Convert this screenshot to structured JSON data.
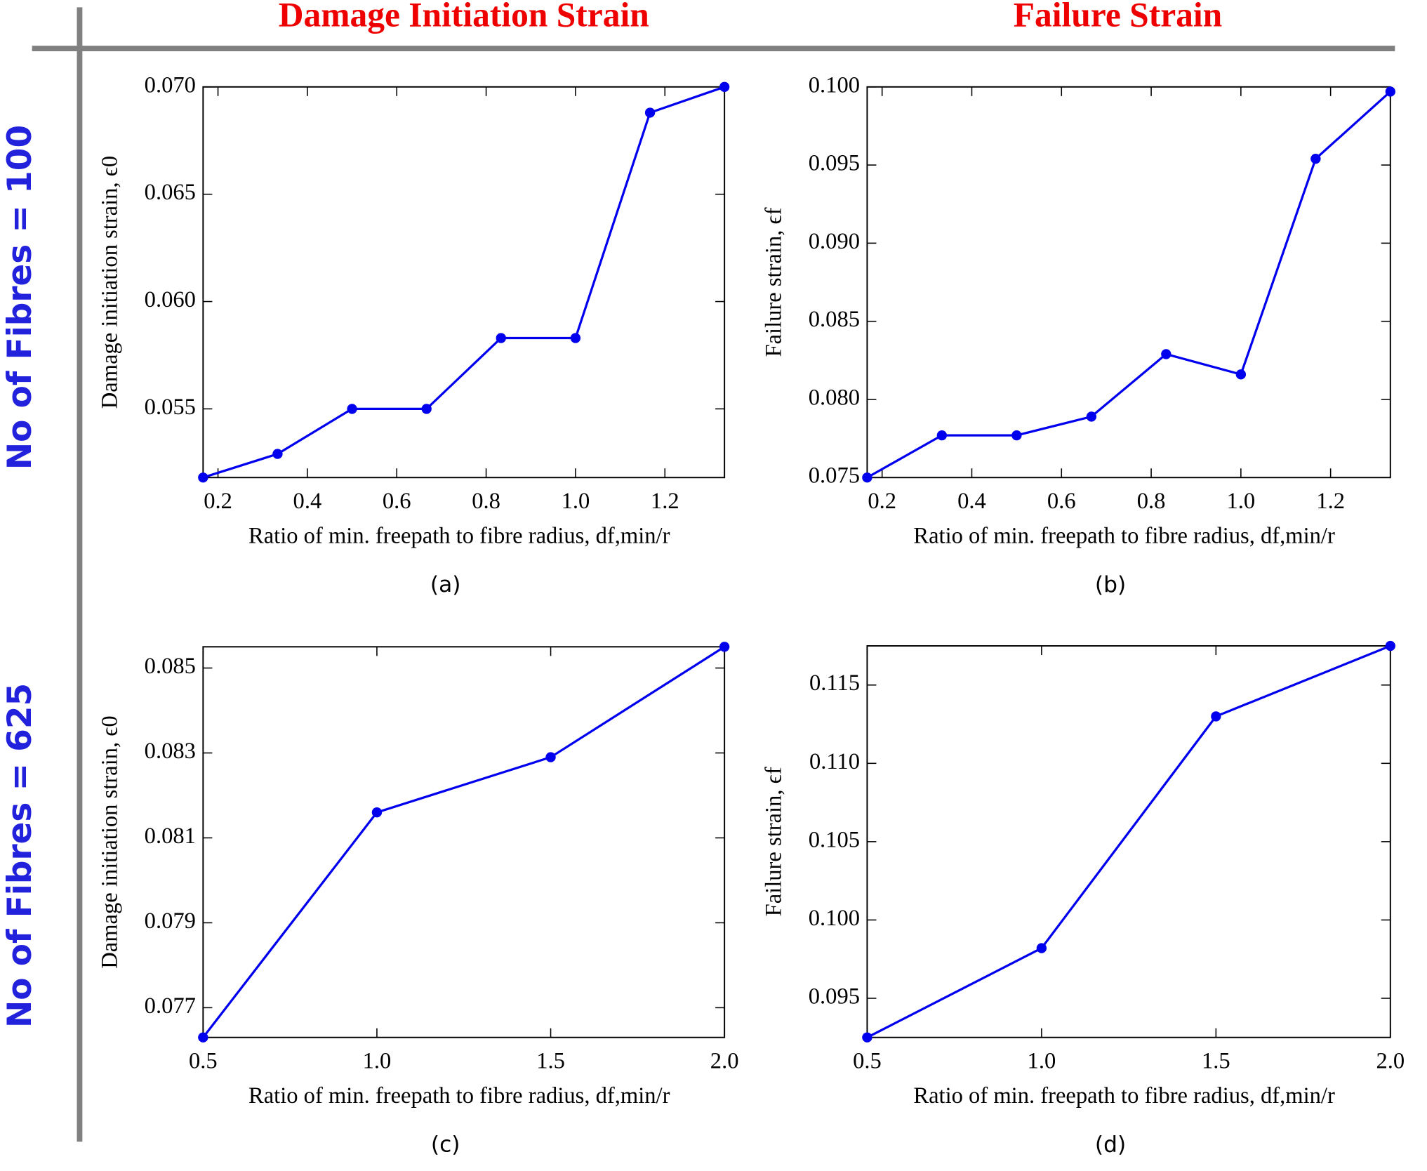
{
  "headers": {
    "columns": [
      "Damage Initiation Strain",
      "Failure Strain"
    ],
    "rows": [
      "No of Fibres = 100",
      "No of Fibres = 625"
    ]
  },
  "chart_data": [
    {
      "type": "line",
      "caption": "(a)",
      "x_label": "Ratio of min. freepath to fibre radius, df,min/r",
      "y_label": "Damage initiation strain, ϵ0",
      "x": [
        0.1667,
        0.3333,
        0.5,
        0.6667,
        0.8333,
        1.0,
        1.1667,
        1.3333
      ],
      "series": [
        {
          "color": "#0000ee",
          "values": [
            0.0518,
            0.0529,
            0.055,
            0.055,
            0.0583,
            0.0583,
            0.0688,
            0.07
          ]
        }
      ],
      "xlim": [
        0.1667,
        1.3333
      ],
      "xticks": [
        0.2,
        0.4,
        0.6,
        0.8,
        {
          "value": 1,
          "label": "1.0"
        },
        1.2
      ],
      "ylim": [
        0.0518,
        0.07
      ],
      "yticks": [
        {
          "value": 0.055,
          "label": "0.055"
        },
        {
          "value": 0.06,
          "label": "0.060"
        },
        {
          "value": 0.065,
          "label": "0.065"
        },
        {
          "value": 0.07,
          "label": "0.070"
        }
      ]
    },
    {
      "type": "line",
      "caption": "(b)",
      "x_label": "Ratio of min. freepath to fibre radius, df,min/r",
      "y_label": "Failure strain, ϵf",
      "x": [
        0.1667,
        0.3333,
        0.5,
        0.6667,
        0.8333,
        1.0,
        1.1667,
        1.3333
      ],
      "series": [
        {
          "color": "#0000ee",
          "values": [
            0.075,
            0.0777,
            0.0777,
            0.0789,
            0.0829,
            0.0816,
            0.0954,
            0.0997
          ]
        }
      ],
      "xlim": [
        0.1667,
        1.3333
      ],
      "xticks": [
        0.2,
        0.4,
        0.6,
        0.8,
        {
          "value": 1,
          "label": "1.0"
        },
        1.2
      ],
      "ylim": [
        0.075,
        0.1
      ],
      "yticks": [
        {
          "value": 0.075,
          "label": "0.075"
        },
        {
          "value": 0.08,
          "label": "0.080"
        },
        {
          "value": 0.085,
          "label": "0.085"
        },
        {
          "value": 0.09,
          "label": "0.090"
        },
        {
          "value": 0.095,
          "label": "0.095"
        },
        {
          "value": 0.1,
          "label": "0.100"
        }
      ]
    },
    {
      "type": "line",
      "caption": "(c)",
      "x_label": "Ratio of min. freepath to fibre radius, df,min/r",
      "y_label": "Damage initiation strain, ϵ0",
      "x": [
        0.5,
        1.0,
        1.5,
        2.0
      ],
      "series": [
        {
          "color": "#0000ee",
          "values": [
            0.0763,
            0.0816,
            0.0829,
            0.0855
          ]
        }
      ],
      "xlim": [
        0.5,
        2.0
      ],
      "xticks": [
        0.5,
        {
          "value": 1,
          "label": "1.0"
        },
        1.5,
        {
          "value": 2,
          "label": "2.0"
        }
      ],
      "ylim": [
        0.0763,
        0.0855
      ],
      "yticks": [
        0.077,
        0.079,
        0.081,
        0.083,
        0.085
      ]
    },
    {
      "type": "line",
      "caption": "(d)",
      "x_label": "Ratio of min. freepath to fibre radius, df,min/r",
      "y_label": "Failure strain, ϵf",
      "x": [
        0.5,
        1.0,
        1.5,
        2.0
      ],
      "series": [
        {
          "color": "#0000ee",
          "values": [
            0.0925,
            0.0982,
            0.113,
            0.1175
          ]
        }
      ],
      "xlim": [
        0.5,
        2.0
      ],
      "xticks": [
        0.5,
        {
          "value": 1,
          "label": "1.0"
        },
        1.5,
        {
          "value": 2,
          "label": "2.0"
        }
      ],
      "ylim": [
        0.0925,
        0.1175
      ],
      "yticks": [
        0.095,
        {
          "value": 0.1,
          "label": "0.100"
        },
        0.105,
        {
          "value": 0.11,
          "label": "0.110"
        },
        0.115
      ]
    }
  ]
}
